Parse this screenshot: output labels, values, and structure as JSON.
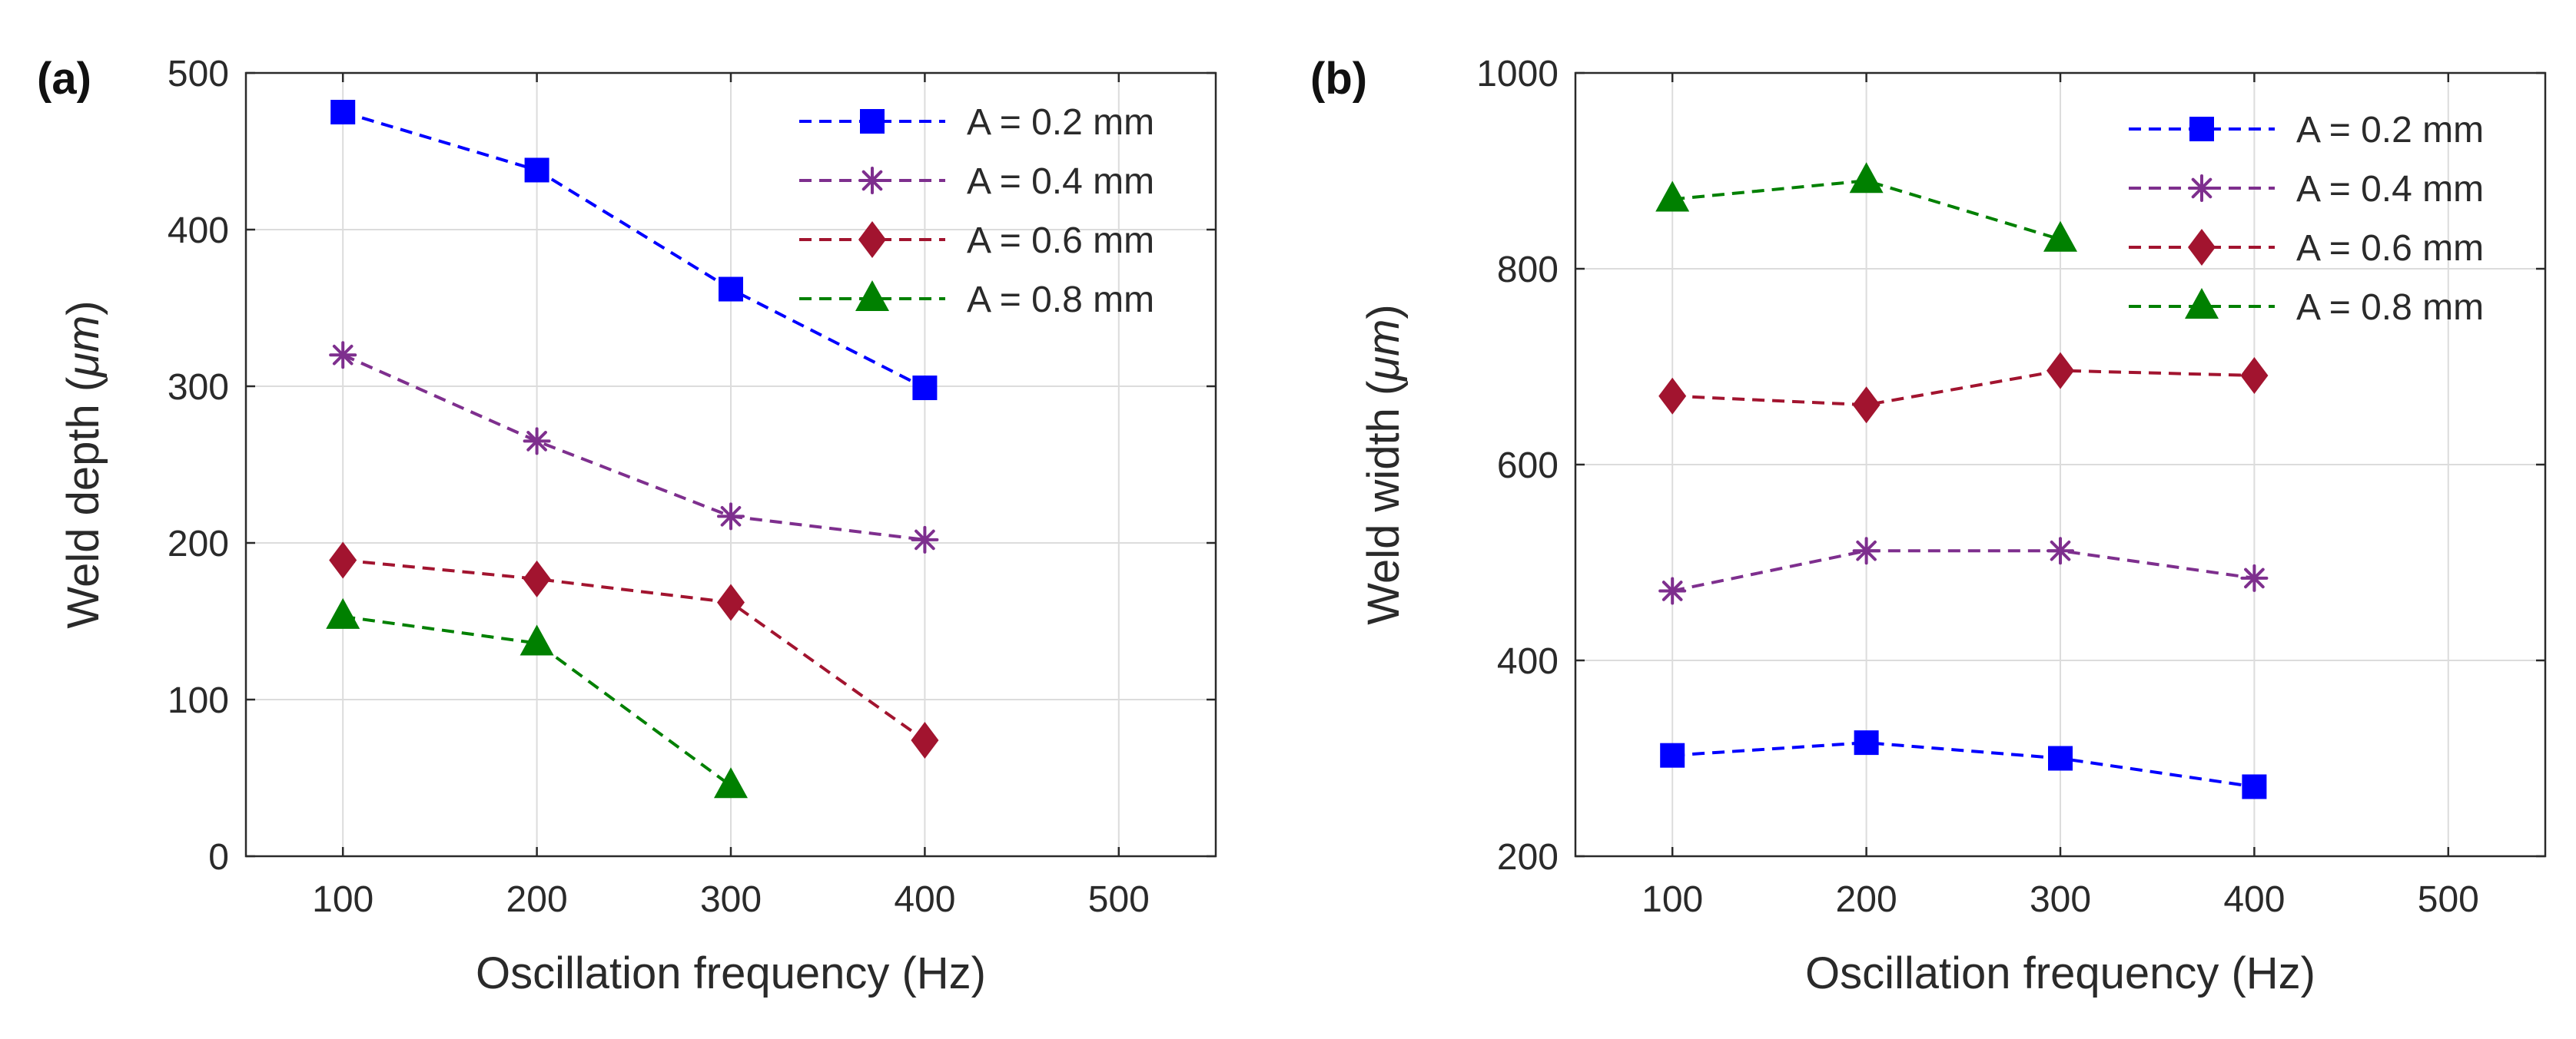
{
  "chart_data": [
    {
      "type": "line",
      "panel_label": "(a)",
      "xlabel": "Oscillation frequency (Hz)",
      "ylabel_prefix": "Weld depth (",
      "ylabel_unit": "μm",
      "ylabel_suffix": ")",
      "xlim": [
        50,
        550
      ],
      "ylim": [
        0,
        500
      ],
      "xticks": [
        100,
        200,
        300,
        400,
        500
      ],
      "yticks": [
        0,
        100,
        200,
        300,
        400,
        500
      ],
      "grid": true,
      "legend_position": "top-right",
      "series": [
        {
          "name": "A = 0.2 mm",
          "marker": "square",
          "color": "#0000ff",
          "x": [
            100,
            200,
            300,
            400
          ],
          "values": [
            475,
            438,
            362,
            299
          ]
        },
        {
          "name": "A = 0.4 mm",
          "marker": "asterisk",
          "color": "#7e2f8e",
          "x": [
            100,
            200,
            300,
            400
          ],
          "values": [
            320,
            265,
            217,
            202
          ]
        },
        {
          "name": "A = 0.6 mm",
          "marker": "diamond",
          "color": "#a2142f",
          "x": [
            100,
            200,
            300,
            400
          ],
          "values": [
            189,
            177,
            162,
            74
          ]
        },
        {
          "name": "A = 0.8 mm",
          "marker": "triangle",
          "color": "#008000",
          "x": [
            100,
            200,
            300
          ],
          "values": [
            153,
            136,
            45
          ]
        }
      ]
    },
    {
      "type": "line",
      "panel_label": "(b)",
      "xlabel": "Oscillation frequency (Hz)",
      "ylabel_prefix": "Weld width (",
      "ylabel_unit": "μm",
      "ylabel_suffix": ")",
      "xlim": [
        50,
        550
      ],
      "ylim": [
        200,
        1000
      ],
      "xticks": [
        100,
        200,
        300,
        400,
        500
      ],
      "yticks": [
        200,
        400,
        600,
        800,
        1000
      ],
      "grid": true,
      "legend_position": "top-right",
      "series": [
        {
          "name": "A = 0.2 mm",
          "marker": "square",
          "color": "#0000ff",
          "x": [
            100,
            200,
            300,
            400
          ],
          "values": [
            303,
            316,
            300,
            271
          ]
        },
        {
          "name": "A = 0.4 mm",
          "marker": "asterisk",
          "color": "#7e2f8e",
          "x": [
            100,
            200,
            300,
            400
          ],
          "values": [
            471,
            512,
            512,
            484
          ]
        },
        {
          "name": "A = 0.6 mm",
          "marker": "diamond",
          "color": "#a2142f",
          "x": [
            100,
            200,
            300,
            400
          ],
          "values": [
            670,
            661,
            696,
            691
          ]
        },
        {
          "name": "A = 0.8 mm",
          "marker": "triangle",
          "color": "#008000",
          "x": [
            100,
            200,
            300
          ],
          "values": [
            871,
            890,
            830
          ]
        }
      ]
    }
  ]
}
